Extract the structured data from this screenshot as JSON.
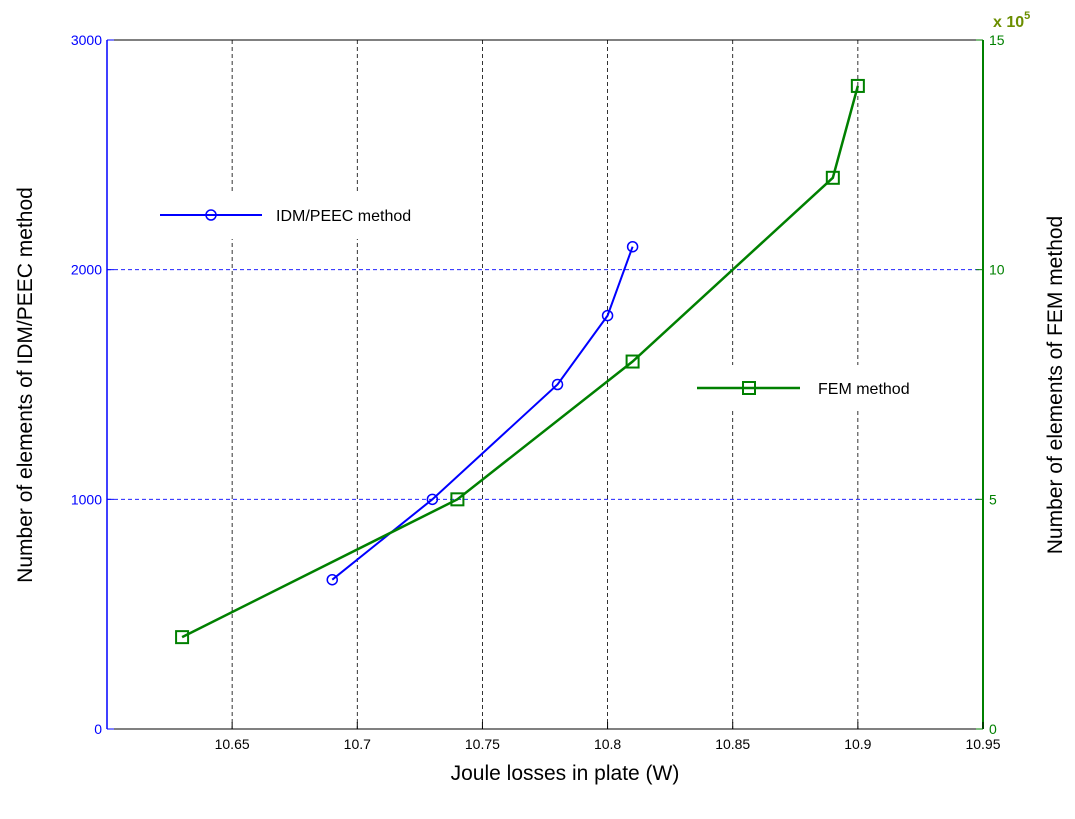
{
  "chart_data": {
    "type": "line",
    "xlabel": "Joule losses in plate (W)",
    "xlim": [
      10.6,
      10.95
    ],
    "xticks": [
      "10.65",
      "10.7",
      "10.75",
      "10.8",
      "10.85",
      "10.9",
      "10.95"
    ],
    "xtick_values": [
      10.65,
      10.7,
      10.75,
      10.8,
      10.85,
      10.9,
      10.95
    ],
    "y_left": {
      "label": "Number of elements of IDM/PEEC method",
      "lim": [
        0,
        3000
      ],
      "ticks": [
        "0",
        "1000",
        "2000",
        "3000"
      ],
      "tick_values": [
        0,
        1000,
        2000,
        3000
      ],
      "color": "#0000ff"
    },
    "y_right": {
      "label": "Number of elements of FEM method",
      "lim": [
        0,
        15
      ],
      "ticks": [
        "0",
        "5",
        "10",
        "15"
      ],
      "tick_values": [
        0,
        5,
        10,
        15
      ],
      "multiplier_base": "x 10",
      "multiplier_exp": "5",
      "color": "#008000",
      "multiplier_color": "#6b8e00"
    },
    "grid": true,
    "series": [
      {
        "name": "IDM/PEEC method",
        "axis": "left",
        "color": "#0000ff",
        "marker": "circle",
        "x": [
          10.69,
          10.73,
          10.78,
          10.8,
          10.81
        ],
        "y": [
          650,
          1000,
          1500,
          1800,
          2100
        ]
      },
      {
        "name": "FEM method",
        "axis": "right",
        "color": "#008000",
        "marker": "square",
        "x": [
          10.63,
          10.74,
          10.81,
          10.89,
          10.9
        ],
        "y": [
          2,
          5,
          8,
          12,
          14
        ]
      }
    ]
  }
}
